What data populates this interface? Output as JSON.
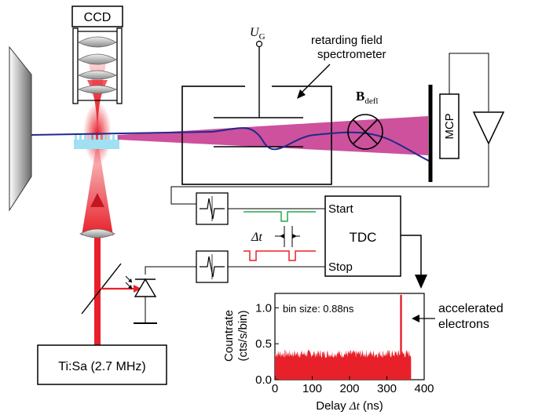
{
  "labels": {
    "ccd": "CCD",
    "ug_main": "U",
    "ug_sub": "G",
    "spectrometer_line1": "retarding field",
    "spectrometer_line2": "spectrometer",
    "bdefl_main": "B",
    "bdefl_sub": "defl",
    "mcp": "MCP",
    "start": "Start",
    "stop": "Stop",
    "tdc": "TDC",
    "delta_t": "Δt",
    "laser": "Ti:Sa (2.7 MHz)",
    "accelerated_line1": "accelerated",
    "accelerated_line2": "electrons"
  },
  "colors": {
    "laser_red": "#e8202a",
    "trajectory_blue": "#1f2a8c",
    "beam_magenta": "#c4328c",
    "start_green": "#2aa84a",
    "stop_red": "#e8202a",
    "grating_cyan": "#9fe0f2"
  },
  "chart_data": {
    "type": "histogram",
    "annotation": "bin size: 0.88ns",
    "xlabel_prefix": "Delay",
    "xlabel_symbol": "Δt",
    "xlabel_unit": "(ns)",
    "ylabel_line1": "Countrate",
    "ylabel_line2": "(cts/s/bin)",
    "xlim": [
      0,
      400
    ],
    "ylim": [
      0,
      1.2
    ],
    "xticks": [
      0,
      100,
      200,
      300,
      400
    ],
    "yticks": [
      0.0,
      0.5,
      1.0
    ],
    "ytick_labels": [
      "0.0",
      "0.5",
      "1.0"
    ],
    "background_level": 0.3,
    "background_max": 0.42,
    "background_range": [
      0,
      365
    ],
    "peak": {
      "x": 338,
      "y": 1.18
    }
  }
}
